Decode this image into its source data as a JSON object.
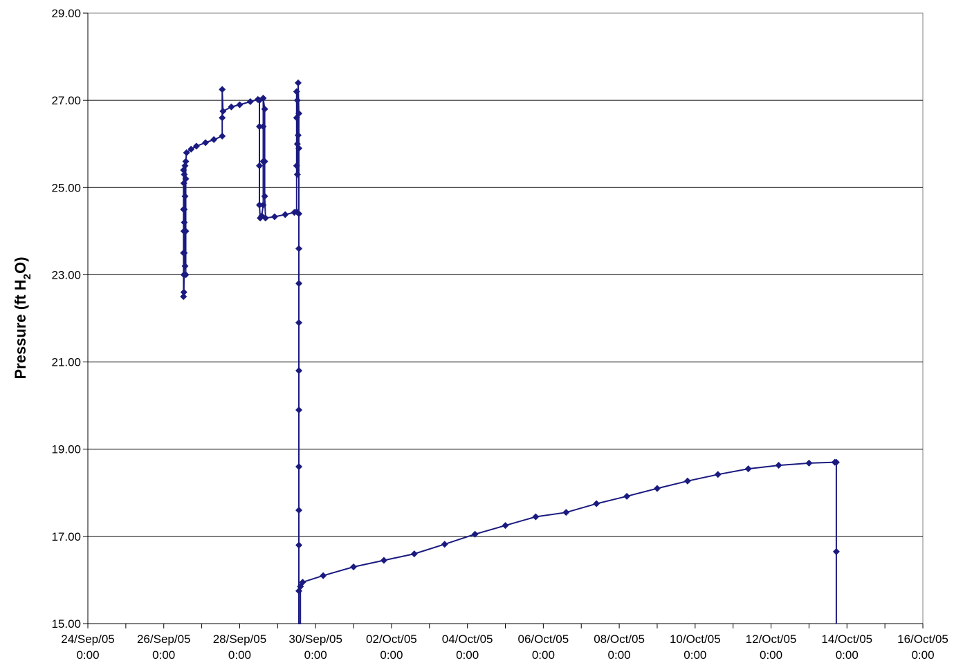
{
  "chart_data": {
    "type": "line",
    "title": "",
    "xlabel": "",
    "ylabel_parts": [
      "Pressure (ft H",
      "2",
      "O)"
    ],
    "ylim": [
      15,
      29
    ],
    "yticks": [
      {
        "value": 15,
        "label": "15.00"
      },
      {
        "value": 17,
        "label": "17.00"
      },
      {
        "value": 19,
        "label": "19.00"
      },
      {
        "value": 21,
        "label": "21.00"
      },
      {
        "value": 23,
        "label": "23.00"
      },
      {
        "value": 25,
        "label": "25.00"
      },
      {
        "value": 27,
        "label": "27.00"
      },
      {
        "value": 29,
        "label": "29.00"
      }
    ],
    "xlim": [
      "2005-09-24 0:00",
      "2005-10-16 0:00"
    ],
    "xticks": [
      {
        "value": "2005-09-24 0:00",
        "label": [
          "24/Sep/05",
          "0:00"
        ]
      },
      {
        "value": "2005-09-26 0:00",
        "label": [
          "26/Sep/05",
          "0:00"
        ]
      },
      {
        "value": "2005-09-28 0:00",
        "label": [
          "28/Sep/05",
          "0:00"
        ]
      },
      {
        "value": "2005-09-30 0:00",
        "label": [
          "30/Sep/05",
          "0:00"
        ]
      },
      {
        "value": "2005-10-02 0:00",
        "label": [
          "02/Oct/05",
          "0:00"
        ]
      },
      {
        "value": "2005-10-04 0:00",
        "label": [
          "04/Oct/05",
          "0:00"
        ]
      },
      {
        "value": "2005-10-06 0:00",
        "label": [
          "06/Oct/05",
          "0:00"
        ]
      },
      {
        "value": "2005-10-08 0:00",
        "label": [
          "08/Oct/05",
          "0:00"
        ]
      },
      {
        "value": "2005-10-10 0:00",
        "label": [
          "10/Oct/05",
          "0:00"
        ]
      },
      {
        "value": "2005-10-12 0:00",
        "label": [
          "12/Oct/05",
          "0:00"
        ]
      },
      {
        "value": "2005-10-14 0:00",
        "label": [
          "14/Oct/05",
          "0:00"
        ]
      },
      {
        "value": "2005-10-16 0:00",
        "label": [
          "16/Oct/05",
          "0:00"
        ]
      }
    ],
    "grid": {
      "horizontal": true,
      "vertical": false
    },
    "legend": "none",
    "series_color": "#1a1a80",
    "series": [
      {
        "points": [
          [
            "2005-09-26 12:29",
            22.5
          ],
          [
            "2005-09-26 12:29",
            23.5
          ],
          [
            "2005-09-26 12:29",
            24.5
          ],
          [
            "2005-09-26 12:29",
            25.4
          ],
          [
            "2005-09-26 12:43",
            25.1
          ],
          [
            "2005-09-26 12:43",
            24.0
          ],
          [
            "2005-09-26 12:43",
            23.0
          ],
          [
            "2005-09-26 12:43",
            22.6
          ],
          [
            "2005-09-26 12:58",
            23.5
          ],
          [
            "2005-09-26 12:58",
            24.5
          ],
          [
            "2005-09-26 12:58",
            25.3
          ],
          [
            "2005-09-26 12:58",
            24.2
          ],
          [
            "2005-09-26 13:26",
            23.2
          ],
          [
            "2005-09-26 13:26",
            24.0
          ],
          [
            "2005-09-26 13:26",
            24.8
          ],
          [
            "2005-09-26 13:26",
            25.5
          ],
          [
            "2005-09-26 13:55",
            25.2
          ],
          [
            "2005-09-26 13:55",
            24.0
          ],
          [
            "2005-09-26 13:55",
            23.0
          ],
          [
            "2005-09-26 13:55",
            25.6
          ],
          [
            "2005-09-26 14:24",
            25.8
          ],
          [
            "2005-09-26 17:17",
            25.88
          ],
          [
            "2005-09-26 20:38",
            25.95
          ],
          [
            "2005-09-27 02:24",
            26.03
          ],
          [
            "2005-09-27 07:41",
            26.1
          ],
          [
            "2005-09-27 12:58",
            26.18
          ],
          [
            "2005-09-27 12:58",
            26.6
          ],
          [
            "2005-09-27 12:58",
            27.25
          ],
          [
            "2005-09-27 13:26",
            26.75
          ],
          [
            "2005-09-27 18:43",
            26.85
          ],
          [
            "2005-09-28 00:00",
            26.9
          ],
          [
            "2005-09-28 06:43",
            26.97
          ],
          [
            "2005-09-28 11:31",
            27.02
          ],
          [
            "2005-09-28 12:29",
            27.0
          ],
          [
            "2005-09-28 12:29",
            26.4
          ],
          [
            "2005-09-28 12:29",
            25.5
          ],
          [
            "2005-09-28 12:29",
            24.6
          ],
          [
            "2005-09-28 12:58",
            24.3
          ],
          [
            "2005-09-28 13:55",
            24.35
          ],
          [
            "2005-09-28 14:53",
            24.6
          ],
          [
            "2005-09-28 14:53",
            25.6
          ],
          [
            "2005-09-28 14:53",
            26.4
          ],
          [
            "2005-09-28 14:53",
            27.05
          ],
          [
            "2005-09-28 15:50",
            26.8
          ],
          [
            "2005-09-28 15:50",
            25.6
          ],
          [
            "2005-09-28 15:50",
            24.8
          ],
          [
            "2005-09-28 16:19",
            24.3
          ],
          [
            "2005-09-28 22:05",
            24.33
          ],
          [
            "2005-09-29 04:48",
            24.38
          ],
          [
            "2005-09-29 10:34",
            24.43
          ],
          [
            "2005-09-29 12:00",
            24.45
          ],
          [
            "2005-09-29 12:00",
            25.5
          ],
          [
            "2005-09-29 12:00",
            26.6
          ],
          [
            "2005-09-29 12:00",
            27.2
          ],
          [
            "2005-09-29 12:29",
            27.0
          ],
          [
            "2005-09-29 12:29",
            26.0
          ],
          [
            "2005-09-29 12:29",
            25.3
          ],
          [
            "2005-09-29 12:58",
            26.2
          ],
          [
            "2005-09-29 12:58",
            27.4
          ],
          [
            "2005-09-29 13:26",
            26.7
          ],
          [
            "2005-09-29 13:26",
            25.9
          ],
          [
            "2005-09-29 13:26",
            24.4
          ],
          [
            "2005-09-29 13:26",
            23.6
          ],
          [
            "2005-09-29 13:26",
            22.8
          ],
          [
            "2005-09-29 13:26",
            21.9
          ],
          [
            "2005-09-29 13:26",
            20.8
          ],
          [
            "2005-09-29 13:26",
            19.9
          ],
          [
            "2005-09-29 13:26",
            18.6
          ],
          [
            "2005-09-29 13:26",
            17.6
          ],
          [
            "2005-09-29 13:26",
            16.8
          ],
          [
            "2005-09-29 13:26",
            15.75
          ],
          [
            "2005-09-29 13:26",
            15.0
          ],
          [
            "2005-09-29 14:24",
            15.0
          ],
          [
            "2005-09-29 14:24",
            15.85
          ],
          [
            "2005-09-29 15:50",
            15.95
          ],
          [
            "2005-09-30 04:48",
            16.1
          ],
          [
            "2005-10-01 00:00",
            16.3
          ],
          [
            "2005-10-01 19:12",
            16.45
          ],
          [
            "2005-10-02 14:24",
            16.6
          ],
          [
            "2005-10-03 09:36",
            16.82
          ],
          [
            "2005-10-04 04:48",
            17.05
          ],
          [
            "2005-10-05 00:00",
            17.25
          ],
          [
            "2005-10-05 19:12",
            17.45
          ],
          [
            "2005-10-06 14:24",
            17.55
          ],
          [
            "2005-10-07 09:36",
            17.75
          ],
          [
            "2005-10-08 04:48",
            17.92
          ],
          [
            "2005-10-09 00:00",
            18.1
          ],
          [
            "2005-10-09 19:12",
            18.27
          ],
          [
            "2005-10-10 14:24",
            18.42
          ],
          [
            "2005-10-11 09:36",
            18.55
          ],
          [
            "2005-10-12 04:48",
            18.63
          ],
          [
            "2005-10-13 00:00",
            18.68
          ],
          [
            "2005-10-13 16:19",
            18.7
          ],
          [
            "2005-10-13 17:17",
            18.7
          ],
          [
            "2005-10-13 17:17",
            16.65
          ],
          [
            "2005-10-13 17:17",
            15.0
          ]
        ]
      }
    ]
  }
}
